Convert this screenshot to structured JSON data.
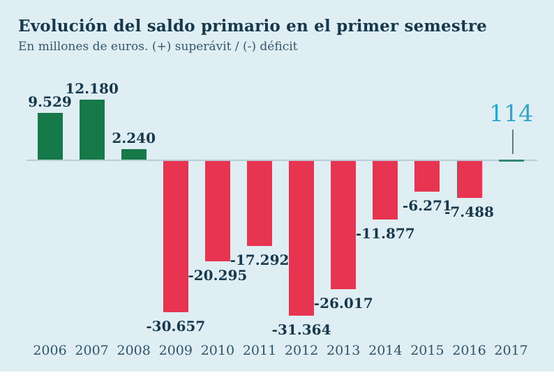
{
  "header": {
    "title": "Evolución del saldo primario en el primer semestre",
    "subtitle": "En millones de euros. (+) superávit / (-) déficit"
  },
  "colors": {
    "background": "#dfeef2",
    "positive_bar": "#15794a",
    "negative_bar": "#e73450",
    "highlight_text": "#2ba7cb",
    "highlight_bar": "#348874",
    "axis_line": "#b7ccd4",
    "value_text": "#16384c",
    "year_text": "#2d566b"
  },
  "chart_data": {
    "type": "bar",
    "title": "Evolución del saldo primario en el primer semestre",
    "subtitle": "En millones de euros. (+) superávit / (-) déficit",
    "unit": "millones de euros",
    "categories": [
      "2006",
      "2007",
      "2008",
      "2009",
      "2010",
      "2011",
      "2012",
      "2013",
      "2014",
      "2015",
      "2016",
      "2017"
    ],
    "values": [
      9529,
      12180,
      2240,
      -30657,
      -20295,
      -17292,
      -31364,
      -26017,
      -11877,
      -6271,
      -7488,
      114
    ],
    "labels": [
      "9.529",
      "12.180",
      "2.240",
      "-30.657",
      "-20.295",
      "-17.292",
      "-31.364",
      "-26.017",
      "-11.877",
      "-6.271",
      "-7.488",
      "114"
    ],
    "highlight_year": "2017",
    "xlabel": "",
    "ylabel": "",
    "ylim": [
      -32000,
      13000
    ],
    "grid": false,
    "legend": "none"
  }
}
